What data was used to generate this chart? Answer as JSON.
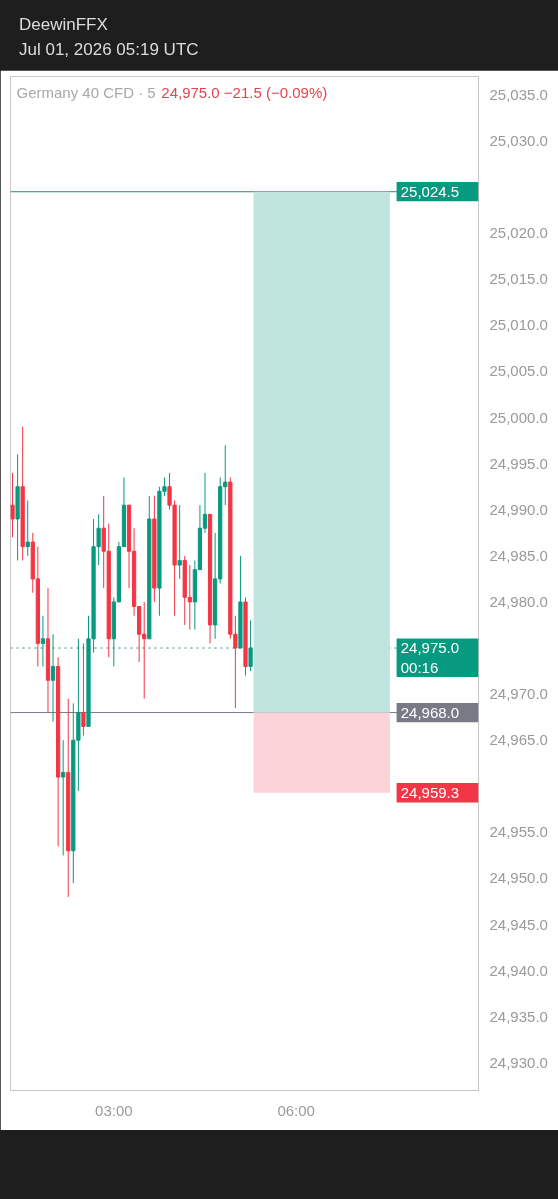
{
  "chart_data": {
    "type": "candlestick",
    "title": "Germany 40 CFD · 5",
    "subtitle": "24,975.0  −21.5 (−0.09%)",
    "annotations": [
      "DeewinFFX",
      "Jul 01, 2026 05:19 UTC"
    ],
    "x": [
      "2026-07-01T01:20",
      "2026-07-01T01:25",
      "2026-07-01T01:30",
      "2026-07-01T01:35",
      "2026-07-01T01:40",
      "2026-07-01T01:45",
      "2026-07-01T01:50",
      "2026-07-01T01:55",
      "2026-07-01T02:00",
      "2026-07-01T02:05",
      "2026-07-01T02:10",
      "2026-07-01T02:15",
      "2026-07-01T02:20",
      "2026-07-01T02:25",
      "2026-07-01T02:30",
      "2026-07-01T02:35",
      "2026-07-01T02:40",
      "2026-07-01T02:45",
      "2026-07-01T02:50",
      "2026-07-01T02:55",
      "2026-07-01T03:00",
      "2026-07-01T03:05",
      "2026-07-01T03:10",
      "2026-07-01T03:15",
      "2026-07-01T03:20",
      "2026-07-01T03:25",
      "2026-07-01T03:30",
      "2026-07-01T03:35",
      "2026-07-01T03:40",
      "2026-07-01T03:45",
      "2026-07-01T03:50",
      "2026-07-01T03:55",
      "2026-07-01T04:00",
      "2026-07-01T04:05",
      "2026-07-01T04:10",
      "2026-07-01T04:15",
      "2026-07-01T04:20",
      "2026-07-01T04:25",
      "2026-07-01T04:30",
      "2026-07-01T04:35",
      "2026-07-01T04:40",
      "2026-07-01T04:45",
      "2026-07-01T04:50",
      "2026-07-01T04:55",
      "2026-07-01T05:00",
      "2026-07-01T05:05",
      "2026-07-01T05:10",
      "2026-07-01T05:15"
    ],
    "ohlc": [
      [
        24990.5,
        24994,
        24987,
        24989
      ],
      [
        24989,
        24996,
        24984.5,
        24992.5
      ],
      [
        24992.5,
        24999,
        24984.5,
        24986
      ],
      [
        24986,
        24991,
        24985,
        24986.5
      ],
      [
        24986.5,
        24987.5,
        24981,
        24982.5
      ],
      [
        24982.5,
        24986,
        24973,
        24975.5
      ],
      [
        24975.5,
        24978.5,
        24973,
        24976
      ],
      [
        24976,
        24981.5,
        24968,
        24971.5
      ],
      [
        24971.5,
        24976.5,
        24967,
        24973
      ],
      [
        24973,
        24974,
        24953.5,
        24961
      ],
      [
        24961,
        24965,
        24952.5,
        24961.5
      ],
      [
        24961.5,
        24969.5,
        24948,
        24953
      ],
      [
        24953,
        24969,
        24949.5,
        24965
      ],
      [
        24965,
        24976,
        24959.5,
        24968
      ],
      [
        24968,
        24975.5,
        24965.5,
        24966.5
      ],
      [
        24966.5,
        24978.5,
        24966.5,
        24976
      ],
      [
        24976,
        24989,
        24974.5,
        24986
      ],
      [
        24986,
        24989.5,
        24984,
        24988
      ],
      [
        24988,
        24991.5,
        24981.5,
        24985.5
      ],
      [
        24985.5,
        24988.5,
        24974,
        24976
      ],
      [
        24976,
        24980.5,
        24973,
        24980
      ],
      [
        24980,
        24986.5,
        24980,
        24986
      ],
      [
        24986,
        24993.5,
        24986,
        24990.5
      ],
      [
        24990.5,
        24990.5,
        24981.5,
        24985.5
      ],
      [
        24985.5,
        24988,
        24978.5,
        24979.5
      ],
      [
        24979.5,
        24979.5,
        24973.5,
        24976.5
      ],
      [
        24976.5,
        24980,
        24969.5,
        24976
      ],
      [
        24976,
        24991.5,
        24976,
        24989
      ],
      [
        24989,
        24991.5,
        24980,
        24981.5
      ],
      [
        24981.5,
        24992.5,
        24978.5,
        24992
      ],
      [
        24992,
        24993.5,
        24991.5,
        24992.5
      ],
      [
        24992.5,
        24994,
        24990,
        24990.5
      ],
      [
        24990.5,
        24991,
        24978.5,
        24984
      ],
      [
        24984,
        24990.5,
        24982.5,
        24984.5
      ],
      [
        24984.5,
        24985,
        24977.5,
        24980.5
      ],
      [
        24980.5,
        24984,
        24977,
        24980
      ],
      [
        24980,
        24984.5,
        24977,
        24983.5
      ],
      [
        24983.5,
        24990.5,
        24983.5,
        24988
      ],
      [
        24988,
        24994,
        24987.5,
        24989.5
      ],
      [
        24989.5,
        24989.5,
        24975.5,
        24977.5
      ],
      [
        24977.5,
        24987.5,
        24976,
        24982.5
      ],
      [
        24982.5,
        24993.5,
        24982,
        24992.5
      ],
      [
        24992.5,
        24997,
        24990.5,
        24993
      ],
      [
        24993,
        24993.5,
        24976,
        24976.5
      ],
      [
        24976.5,
        24978.5,
        24968.5,
        24975
      ],
      [
        24975,
        24985,
        24975,
        24980
      ],
      [
        24980,
        24980.5,
        24972,
        24973
      ],
      [
        24973,
        24978,
        24972.5,
        24975
      ]
    ],
    "colors": [
      "#f23645",
      "#089981",
      "#f23645",
      "#089981",
      "#f23645",
      "#f23645",
      "#089981",
      "#f23645",
      "#089981",
      "#f23645",
      "#089981",
      "#f23645",
      "#089981",
      "#089981",
      "#f23645",
      "#089981",
      "#089981",
      "#089981",
      "#f23645",
      "#f23645",
      "#089981",
      "#089981",
      "#089981",
      "#f23645",
      "#f23645",
      "#f23645",
      "#f23645",
      "#089981",
      "#f23645",
      "#089981",
      "#089981",
      "#f23645",
      "#f23645",
      "#089981",
      "#f23645",
      "#f23645",
      "#089981",
      "#089981",
      "#089981",
      "#f23645",
      "#089981",
      "#089981",
      "#089981",
      "#f23645",
      "#f23645",
      "#089981",
      "#f23645",
      "#089981"
    ],
    "xlim": [
      "2026-07-01T01:18",
      "2026-07-01T09:00"
    ],
    "xticks": [
      {
        "value": "2026-07-01T03:00",
        "label": "03:00"
      },
      {
        "value": "2026-07-01T06:00",
        "label": "06:00"
      }
    ],
    "ylim": [
      24927,
      25037
    ],
    "yticks": [
      {
        "value": 24930,
        "label": "24,930.0"
      },
      {
        "value": 24935,
        "label": "24,935.0"
      },
      {
        "value": 24940,
        "label": "24,940.0"
      },
      {
        "value": 24945,
        "label": "24,945.0"
      },
      {
        "value": 24950,
        "label": "24,950.0"
      },
      {
        "value": 24955,
        "label": "24,955.0"
      },
      {
        "value": 24965,
        "label": "24,965.0"
      },
      {
        "value": 24970,
        "label": "24,970.0"
      },
      {
        "value": 24975,
        "label": null
      },
      {
        "value": 24980,
        "label": "24,980.0"
      },
      {
        "value": 24985,
        "label": "24,985.0"
      },
      {
        "value": 24990,
        "label": "24,990.0"
      },
      {
        "value": 24995,
        "label": "24,995.0"
      },
      {
        "value": 25000,
        "label": "25,000.0"
      },
      {
        "value": 25005,
        "label": "25,005.0"
      },
      {
        "value": 25010,
        "label": "25,010.0"
      },
      {
        "value": 25015,
        "label": "25,015.0"
      },
      {
        "value": 25020,
        "label": "25,020.0"
      },
      {
        "value": 25030,
        "label": "25,030.0"
      },
      {
        "value": 25035,
        "label": "25,035.0"
      }
    ],
    "ref_lines": [
      {
        "axis": "y",
        "value": 25024.5,
        "label": "25,024.5",
        "color": "#089981"
      },
      {
        "axis": "y",
        "value": 24968.0,
        "label": "24,968.0",
        "color": "#787b86"
      },
      {
        "axis": "y",
        "value": 24975.0,
        "label": "24,975.0\n00:16",
        "color": "#089981",
        "line_style": "dotted"
      }
    ],
    "bands": [
      {
        "axis": "y",
        "from": 24968.0,
        "to": 25024.5,
        "color": "#bfe5de"
      },
      {
        "axis": "y",
        "from": 24959.3,
        "to": 24968.0,
        "label": "24,959.3",
        "color": "#fcd3d7"
      }
    ],
    "grid": false
  }
}
